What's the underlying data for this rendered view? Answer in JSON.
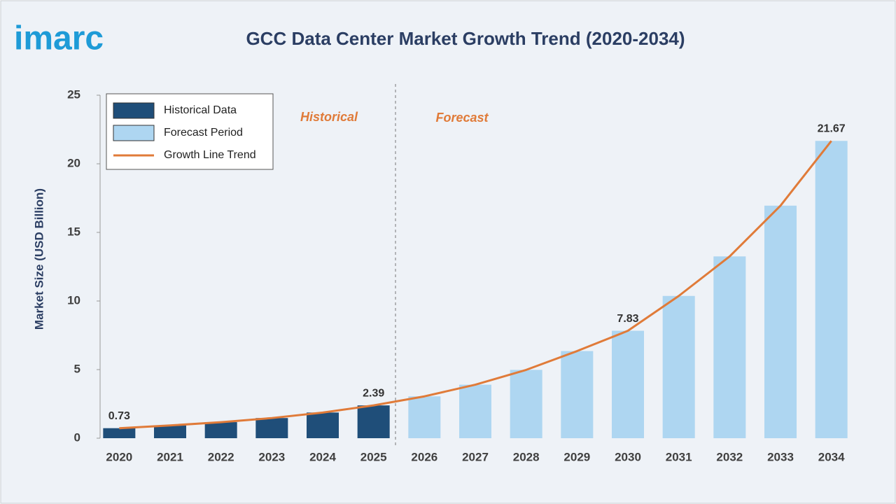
{
  "brand": "imarc",
  "chart_data": {
    "type": "bar",
    "title": "GCC Data Center Market Growth Trend (2020-2034)",
    "ylabel": "Market Size (USD Billion)",
    "annotations": [
      "Historical",
      "Forecast"
    ],
    "categories": [
      "2020",
      "2021",
      "2022",
      "2023",
      "2024",
      "2025",
      "2026",
      "2027",
      "2028",
      "2029",
      "2030",
      "2031",
      "2032",
      "2033",
      "2034"
    ],
    "series": [
      {
        "name": "Historical Data",
        "color": "#1f4e79",
        "values": [
          0.73,
          0.93,
          1.17,
          1.47,
          1.87,
          2.39,
          null,
          null,
          null,
          null,
          null,
          null,
          null,
          null,
          null
        ]
      },
      {
        "name": "Forecast Period",
        "color": "#aed6f1",
        "values": [
          null,
          null,
          null,
          null,
          null,
          null,
          3.05,
          3.9,
          4.98,
          6.35,
          7.83,
          10.37,
          13.25,
          16.95,
          21.67
        ]
      },
      {
        "name": "Growth Line Trend",
        "type": "line",
        "color": "#e07b39",
        "values": [
          0.73,
          0.93,
          1.17,
          1.47,
          1.87,
          2.39,
          3.05,
          3.9,
          4.98,
          6.35,
          7.83,
          10.37,
          13.25,
          16.95,
          21.67
        ],
        "value_labels": [
          "0.73",
          null,
          null,
          null,
          null,
          "2.39",
          null,
          null,
          null,
          null,
          "7.83",
          null,
          null,
          null,
          "21.67"
        ]
      }
    ],
    "ylim": [
      0,
      25
    ],
    "yticks": [
      0,
      5,
      10,
      15,
      20,
      25
    ],
    "legend": "upper-left"
  }
}
